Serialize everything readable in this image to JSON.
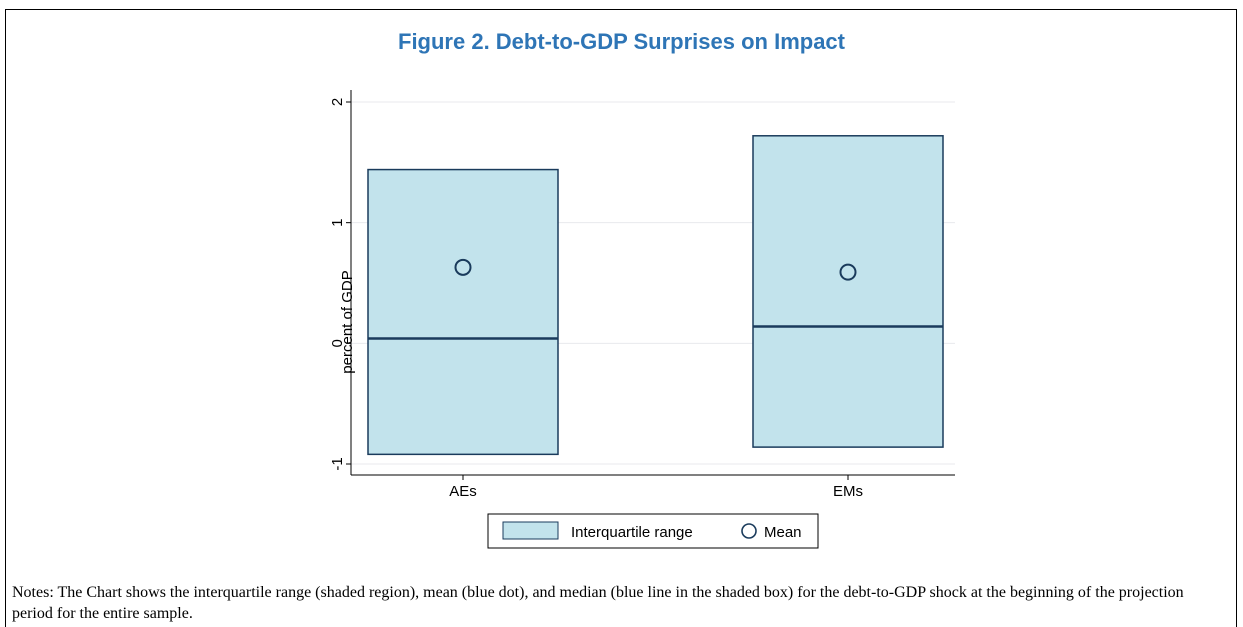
{
  "title": "Figure 2. Debt-to-GDP Surprises on Impact",
  "notes": "Notes: The Chart shows the interquartile range (shaded region), mean (blue dot), and median (blue line in the shaded box) for the debt-to-GDP shock at the beginning of the projection period for the entire sample.",
  "colors": {
    "title": "#2e75b6",
    "box_fill": "#c2e3ec",
    "box_stroke": "#1a3b5c",
    "grid": "#e8eaed",
    "plot_bg": "#ffffff",
    "outer_bg": "#ffffff"
  },
  "chart_data": {
    "type": "box",
    "categories": [
      "AEs",
      "EMs"
    ],
    "series": [
      {
        "name": "Interquartile range",
        "values": [
          {
            "q1": -0.92,
            "q3": 1.44,
            "median": 0.04
          },
          {
            "q1": -0.86,
            "q3": 1.72,
            "median": 0.14
          }
        ]
      },
      {
        "name": "Mean",
        "values": [
          0.63,
          0.59
        ]
      }
    ],
    "xlabel": "",
    "ylabel": "percent of GDP",
    "ylim": [
      -1,
      2
    ],
    "yticks": [
      -1,
      0,
      1,
      2
    ],
    "grid": true,
    "legend": "bottom"
  }
}
